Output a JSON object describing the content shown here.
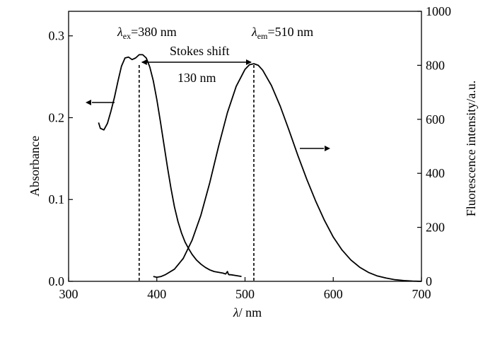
{
  "chart_data": {
    "type": "line",
    "title": "",
    "x_axis": {
      "label_symbol": "λ",
      "label_unit": "/ nm",
      "range": [
        300,
        700
      ],
      "ticks": [
        300,
        400,
        500,
        600,
        700
      ]
    },
    "y_left": {
      "label": "Absorbance",
      "range": [
        0.0,
        0.33
      ],
      "ticks": [
        0.0,
        0.1,
        0.2,
        0.3
      ],
      "tick_labels": [
        "0.0",
        "0.1",
        "0.2",
        "0.3"
      ]
    },
    "y_right": {
      "label": "Fluorescence intensity/a.u.",
      "range": [
        0,
        1000
      ],
      "ticks": [
        0,
        200,
        400,
        600,
        800,
        1000
      ]
    },
    "series": [
      {
        "axis": "left",
        "x": [
          334,
          336,
          340,
          344,
          348,
          352,
          356,
          360,
          364,
          368,
          372,
          376,
          380,
          384,
          388,
          392,
          396,
          400,
          404,
          408,
          412,
          416,
          420,
          424,
          428,
          432,
          436,
          440,
          445,
          450,
          455,
          460,
          465,
          470,
          475,
          478,
          480,
          481,
          482,
          484,
          490,
          496
        ],
        "y": [
          0.194,
          0.187,
          0.185,
          0.193,
          0.208,
          0.225,
          0.245,
          0.263,
          0.273,
          0.274,
          0.271,
          0.273,
          0.277,
          0.277,
          0.273,
          0.262,
          0.245,
          0.222,
          0.196,
          0.168,
          0.14,
          0.114,
          0.091,
          0.073,
          0.059,
          0.048,
          0.04,
          0.033,
          0.026,
          0.021,
          0.017,
          0.014,
          0.012,
          0.011,
          0.01,
          0.009,
          0.012,
          0.009,
          0.008,
          0.008,
          0.007,
          0.006
        ]
      },
      {
        "axis": "right",
        "x": [
          396,
          400,
          405,
          410,
          420,
          430,
          440,
          450,
          460,
          470,
          480,
          490,
          500,
          505,
          510,
          515,
          520,
          530,
          540,
          550,
          560,
          570,
          580,
          590,
          600,
          610,
          620,
          630,
          640,
          650,
          660,
          670,
          680,
          690,
          700
        ],
        "y": [
          18,
          15,
          18,
          25,
          45,
          85,
          152,
          245,
          365,
          500,
          625,
          722,
          785,
          802,
          806,
          800,
          782,
          725,
          648,
          558,
          465,
          378,
          298,
          226,
          164,
          116,
          79,
          52,
          33,
          20,
          12,
          6,
          3,
          1,
          0
        ]
      }
    ],
    "annotations": {
      "ex_symbol": "λ",
      "ex_sub": "ex",
      "ex_value": "=380 nm",
      "em_symbol": "λ",
      "em_sub": "em",
      "em_value": "=510 nm",
      "stokes_label": "Stokes shift",
      "stokes_value": "130 nm",
      "ex_x": 380,
      "em_x": 510
    }
  }
}
